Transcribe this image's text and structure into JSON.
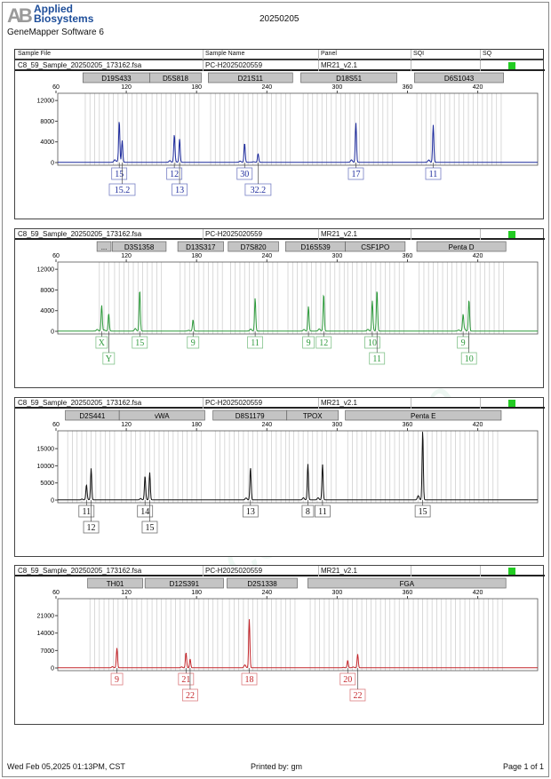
{
  "header": {
    "logo_mark": "AB",
    "logo_text_line1": "Applied",
    "logo_text_line2": "Biosystems",
    "software": "GeneMapper Software 6",
    "title": "20250205"
  },
  "columns": [
    "Sample File",
    "Sample Name",
    "Panel",
    "SQI",
    "SQ"
  ],
  "sample": {
    "file": "C8_59_Sample_20250205_173162.fsa",
    "name": "PC-H2025020559",
    "panel": "MR21_v2.1",
    "sq_color": "#22cc22"
  },
  "watermark": "www.procell.com.cn",
  "footer": {
    "datetime": "Wed Feb 05,2025 01:13PM, CST",
    "printed_by": "Printed by: gm",
    "page": "Page 1 of 1"
  },
  "chart_data": [
    {
      "type": "line",
      "color": "#1c2a9c",
      "xlim": [
        60,
        470
      ],
      "xticks": [
        60,
        120,
        180,
        240,
        300,
        360,
        420
      ],
      "ylim": [
        0,
        13400
      ],
      "yticks": [
        0,
        4000,
        8000,
        12000
      ],
      "markers": [
        {
          "name": "D19S433",
          "range": [
            83,
            140
          ]
        },
        {
          "name": "D5S818",
          "range": [
            140,
            184
          ]
        },
        {
          "name": "D21S11",
          "range": [
            190,
            262
          ]
        },
        {
          "name": "D18S51",
          "range": [
            269,
            351
          ]
        },
        {
          "name": "D6S1043",
          "range": [
            366,
            442
          ]
        }
      ],
      "peaks": [
        {
          "allele": "15",
          "bp": 114,
          "height": 8000,
          "row": 0
        },
        {
          "allele": "15.2",
          "bp": 116.5,
          "height": 4200,
          "row": 1
        },
        {
          "allele": "12",
          "bp": 161,
          "height": 5200,
          "row": 0
        },
        {
          "allele": "13",
          "bp": 165.5,
          "height": 4500,
          "row": 1
        },
        {
          "allele": "30",
          "bp": 221,
          "height": 3700,
          "row": 0
        },
        {
          "allele": "32.2",
          "bp": 232.5,
          "height": 1700,
          "row": 1
        },
        {
          "allele": "17",
          "bp": 316,
          "height": 7600,
          "row": 0
        },
        {
          "allele": "11",
          "bp": 382,
          "height": 7200,
          "row": 0
        }
      ]
    },
    {
      "type": "line",
      "color": "#2e9a3c",
      "xlim": [
        60,
        470
      ],
      "xticks": [
        60,
        120,
        180,
        240,
        300,
        360,
        420
      ],
      "ylim": [
        0,
        13400
      ],
      "yticks": [
        0,
        4000,
        8000,
        12000
      ],
      "markers": [
        {
          "name": "...",
          "range": [
            95,
            107
          ]
        },
        {
          "name": "D3S1358",
          "range": [
            108,
            154
          ]
        },
        {
          "name": "D13S317",
          "range": [
            164,
            203
          ]
        },
        {
          "name": "D7S820",
          "range": [
            207,
            250
          ]
        },
        {
          "name": "D16S539",
          "range": [
            256,
            307
          ]
        },
        {
          "name": "CSF1PO",
          "range": [
            307,
            358
          ]
        },
        {
          "name": "Penta D",
          "range": [
            368,
            444
          ]
        }
      ],
      "peaks": [
        {
          "allele": "X",
          "bp": 99,
          "height": 5000,
          "row": 0
        },
        {
          "allele": "Y",
          "bp": 105,
          "height": 3400,
          "row": 1
        },
        {
          "allele": "15",
          "bp": 131.5,
          "height": 8000,
          "row": 0
        },
        {
          "allele": "9",
          "bp": 177,
          "height": 2200,
          "row": 0
        },
        {
          "allele": "11",
          "bp": 230,
          "height": 6400,
          "row": 0
        },
        {
          "allele": "9",
          "bp": 275.5,
          "height": 4800,
          "row": 0
        },
        {
          "allele": "12",
          "bp": 288.5,
          "height": 7200,
          "row": 0
        },
        {
          "allele": "10",
          "bp": 330,
          "height": 5400,
          "row": 0
        },
        {
          "allele": "11",
          "bp": 334,
          "height": 8000,
          "row": 1
        },
        {
          "allele": "9",
          "bp": 407.5,
          "height": 3200,
          "row": 0
        },
        {
          "allele": "10",
          "bp": 412.5,
          "height": 6100,
          "row": 1
        }
      ]
    },
    {
      "type": "line",
      "color": "#111111",
      "xlim": [
        60,
        470
      ],
      "xticks": [
        60,
        120,
        180,
        240,
        300,
        360,
        420
      ],
      "ylim": [
        0,
        20200
      ],
      "yticks": [
        0,
        5000,
        10000,
        15000
      ],
      "markers": [
        {
          "name": "D2S441",
          "range": [
            68,
            114
          ]
        },
        {
          "name": "vWA",
          "range": [
            114,
            187
          ]
        },
        {
          "name": "D8S1179",
          "range": [
            194,
            257
          ]
        },
        {
          "name": "TPOX",
          "range": [
            257,
            301
          ]
        },
        {
          "name": "Penta E",
          "range": [
            307,
            440
          ]
        }
      ],
      "peaks": [
        {
          "allele": "11",
          "bp": 86,
          "height": 3900,
          "row": 0
        },
        {
          "allele": "12",
          "bp": 90,
          "height": 9200,
          "row": 1
        },
        {
          "allele": "14",
          "bp": 136,
          "height": 6600,
          "row": 0
        },
        {
          "allele": "15",
          "bp": 140,
          "height": 8000,
          "row": 1
        },
        {
          "allele": "13",
          "bp": 226,
          "height": 9500,
          "row": 0
        },
        {
          "allele": "8",
          "bp": 275,
          "height": 10500,
          "row": 0
        },
        {
          "allele": "11",
          "bp": 287.5,
          "height": 10400,
          "row": 0
        },
        {
          "allele": "15",
          "bp": 373,
          "height": 20200,
          "row": 0
        }
      ]
    },
    {
      "type": "line",
      "color": "#c4262b",
      "xlim": [
        60,
        470
      ],
      "xticks": [
        60,
        120,
        180,
        240,
        300,
        360,
        420
      ],
      "ylim": [
        0,
        27800
      ],
      "yticks": [
        0,
        7000,
        14000,
        21000
      ],
      "markers": [
        {
          "name": "TH01",
          "range": [
            87,
            134
          ]
        },
        {
          "name": "D12S391",
          "range": [
            136,
            203
          ]
        },
        {
          "name": "D2S1338",
          "range": [
            206,
            266
          ]
        },
        {
          "name": "FGA",
          "range": [
            275,
            444
          ]
        }
      ],
      "peaks": [
        {
          "allele": "9",
          "bp": 112,
          "height": 8000,
          "row": 0
        },
        {
          "allele": "21",
          "bp": 171,
          "height": 6000,
          "row": 0
        },
        {
          "allele": "22",
          "bp": 174.5,
          "height": 3500,
          "row": 1
        },
        {
          "allele": "18",
          "bp": 225,
          "height": 19500,
          "row": 0
        },
        {
          "allele": "20",
          "bp": 309,
          "height": 3000,
          "row": 0
        },
        {
          "allele": "22",
          "bp": 317.5,
          "height": 5500,
          "row": 1
        }
      ]
    }
  ]
}
